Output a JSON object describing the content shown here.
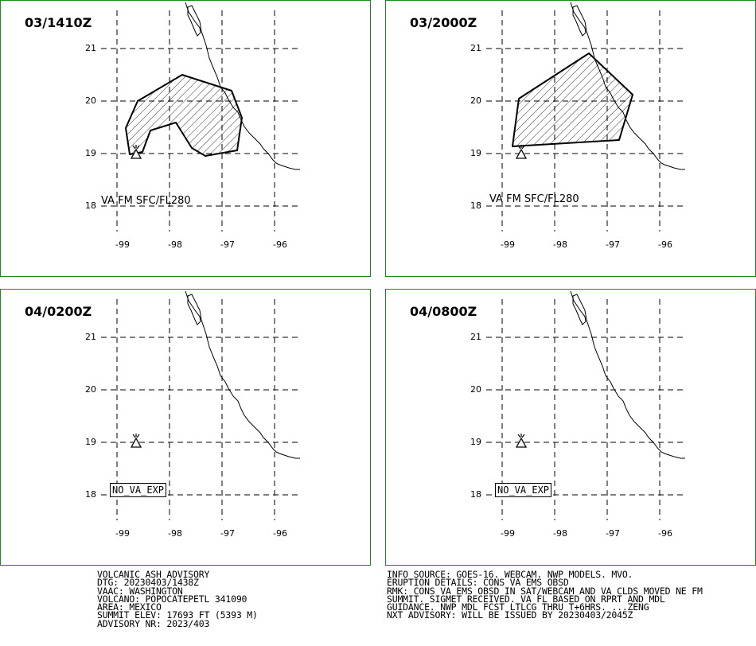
{
  "panels": [
    {
      "title": "03/1410Z",
      "va_label": "VA FM SFC/FL280",
      "no_va": ""
    },
    {
      "title": "03/2000Z",
      "va_label": "VA FM SFC/FL280",
      "no_va": ""
    },
    {
      "title": "04/0200Z",
      "va_label": "",
      "no_va": "NO_VA_EXP"
    },
    {
      "title": "04/0800Z",
      "va_label": "",
      "no_va": "NO_VA_EXP"
    }
  ],
  "axes": {
    "lat_labels": [
      "21",
      "20",
      "19",
      "18"
    ],
    "lon_labels": [
      "-99",
      "-98",
      "-97",
      "-96"
    ]
  },
  "advisory_left": {
    "line1": "VOLCANIC ASH ADVISORY",
    "line2": "DTG: 20230403/1438Z",
    "line3": "VAAC: WASHINGTON",
    "line4": "VOLCANO: POPOCATEPETL 341090",
    "line5": "AREA: MEXICO",
    "line6": "SUMMIT ELEV: 17693 FT (5393 M)",
    "line7": "ADVISORY NR: 2023/403"
  },
  "advisory_right": {
    "line1": "INFO SOURCE: GOES-16. WEBCAM. NWP MODELS. MVO.",
    "line2": "ERUPTION DETAILS: CONS VA EMS OBSD",
    "line3": "RMK: CONS VA EMS OBSD IN SAT/WEBCAM AND VA CLDS MOVED NE FM",
    "line4": "SUMMIT. SIGMET RECEIVED. VA FL BASED ON RPRT AND MDL",
    "line5": "GUIDANCE. NWP MDL FCST LTLCG THRU T+6HRS. ...ZENG",
    "line6": "NXT ADVISORY: WILL BE ISSUED BY 20230403/2045Z"
  },
  "colors": {
    "panel_border": "#1a8a1a",
    "ash_fill": "hatched",
    "lines": "#000000"
  }
}
